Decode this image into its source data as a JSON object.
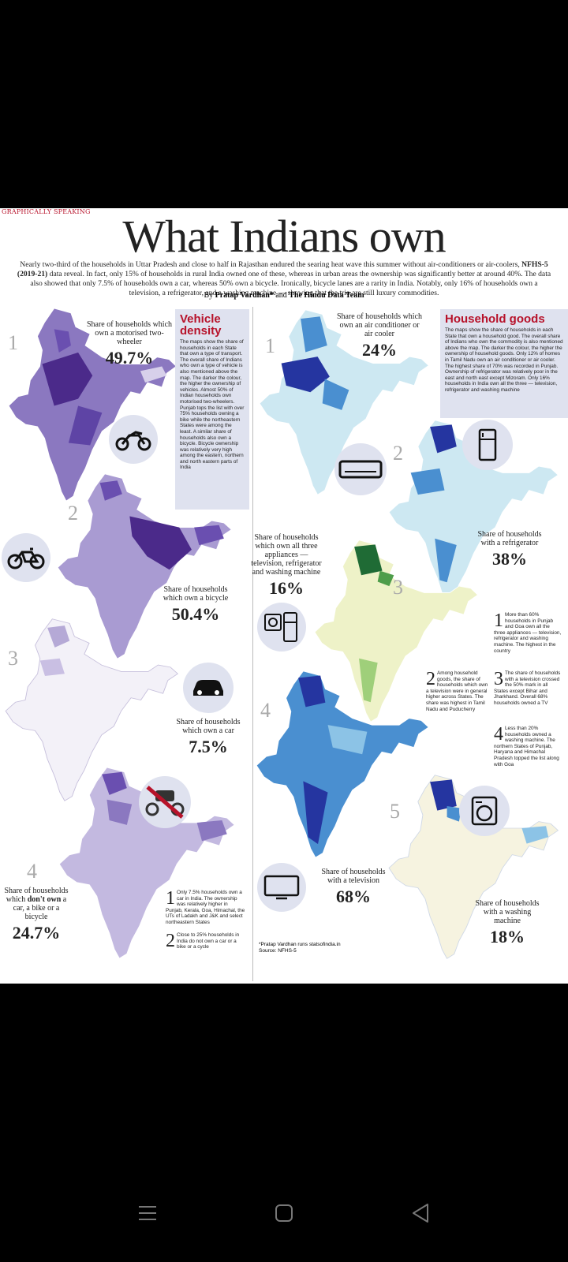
{
  "header": {
    "kicker": "GRAPHICALLY SPEAKING",
    "title": "What Indians own",
    "intro_pre": "Nearly two-third of the households in Uttar Pradesh and close to half in Rajasthan endured the searing heat wave this summer without air-conditioners or air-coolers, ",
    "intro_bold": "NFHS-5 (2019-21)",
    "intro_post": " data reveal. In fact, only 15% of households in rural India owned one of these, whereas in urban areas the ownership was significantly better at around 40%. The data also showed that only 7.5% of households own a car, whereas 50% own a bicycle. Ironically, bicycle lanes are a rarity in India. Notably, only 16% of households own a television, a refrigerator, and a washing machine — showing that the trio are still luxury commodities.",
    "by": "By",
    "author": "Pratap Vardhan*",
    "and": "and",
    "team": "The Hindu Data Team"
  },
  "vehicle": {
    "box_title": "Vehicle density",
    "box_text": "The maps show the share of households in each State that own a type of transport. The overall share of Indians who own a type of vehicle is also mentioned above the map. The darker the colour, the higher the ownership of vehicles. Almost 50% of Indian households own motorised two-wheelers. Punjab tops the list with over 75% households owning a bike while the northeastern States were among the least. A similar share of households also own a bicycle. Bicycle ownership was relatively very high among the eastern, northern and north eastern parts of India",
    "maps": [
      {
        "num": "1",
        "label": "Share of households which own a motorised two-wheeler",
        "value": "49.7%",
        "icon": "motorcycle-icon"
      },
      {
        "num": "2",
        "label": "Share of households which own a bicycle",
        "value": "50.4%",
        "icon": "bicycle-icon"
      },
      {
        "num": "3",
        "label": "Share of households which own a car",
        "value": "7.5%",
        "icon": "car-icon"
      },
      {
        "num": "4",
        "label_pre": "Share of households which ",
        "label_bold": "don't own",
        "label_post": " a car, a bike or a bicycle",
        "value": "24.7%",
        "icon": "no-vehicle-icon"
      }
    ],
    "notes": [
      {
        "n": "1",
        "text": "Only 7.5% households own a car in India. The ownership was relatively higher in Punjab, Kerala, Goa, Himachal, the UTs of Ladakh and J&K and select northeastern States"
      },
      {
        "n": "2",
        "text": "Close to 25% households in India do not own a car or a bike or a cycle"
      }
    ]
  },
  "goods": {
    "box_title": "Household goods",
    "box_text": "The maps show the share of households in each State that own a household good. The overall share of Indians who own the commodity is also mentioned above the map. The darker the colour, the higher the ownership of household goods. Only 12% of homes in Tamil Nadu own an air conditioner or air cooler. The highest share of 70% was recorded in Punjab. Ownership of refrigerator was relatively poor in the east and north east except Mizoram. Only 16% households in India own all the three — television, refrigerator and washing machine",
    "maps": [
      {
        "num": "1",
        "label": "Share of households which own an air conditioner or air cooler",
        "value": "24%",
        "icon": "air-conditioner-icon"
      },
      {
        "num": "2",
        "label": "Share of households with a refrigerator",
        "value": "38%",
        "icon": "refrigerator-icon"
      },
      {
        "num": "3",
        "label": "Share of households which own all three appliances — television, refrigerator and washing machine",
        "value": "16%",
        "icon": "appliances-icon"
      },
      {
        "num": "4",
        "label": "Share of households with a television",
        "value": "68%",
        "icon": "television-icon"
      },
      {
        "num": "5",
        "label": "Share of households with a washing machine",
        "value": "18%",
        "icon": "washing-machine-icon"
      }
    ],
    "notes": [
      {
        "n": "1",
        "text": "More than 60% households in Punjab and Goa own all the three appliances — television, refrigerator and washing machine. The highest in the country"
      },
      {
        "n": "2",
        "text": "Among household goods, the share of households which own a television were in general higher across States. The share was highest in Tamil Nadu and Puducherry"
      },
      {
        "n": "3",
        "text": "The share of households with a television crossed the 50% mark in all States except Bihar and Jharkhand. Overall 68% households owned a TV"
      },
      {
        "n": "4",
        "text": "Less than 20% households owned a washing machine. The northern States of Punjab, Haryana and Himachal Pradesh topped the list along with Goa"
      }
    ]
  },
  "source": {
    "credit": "*Pratap Vardhan runs statsofindia.in",
    "label": "Source: NFHS-5"
  },
  "colors": {
    "purple_dark": "#4b2a8a",
    "purple_mid": "#8b78c0",
    "purple_light": "#d7d0ea",
    "blue_dark": "#2535a0",
    "blue_mid": "#4a8fd0",
    "blue_light": "#cde8f2",
    "green_dark": "#1f6b35",
    "green_light": "#eef2c8",
    "accent_red": "#b7122a",
    "box_bg": "#dfe2ef"
  },
  "navbar": [
    "menu-icon",
    "home-icon",
    "back-icon"
  ]
}
